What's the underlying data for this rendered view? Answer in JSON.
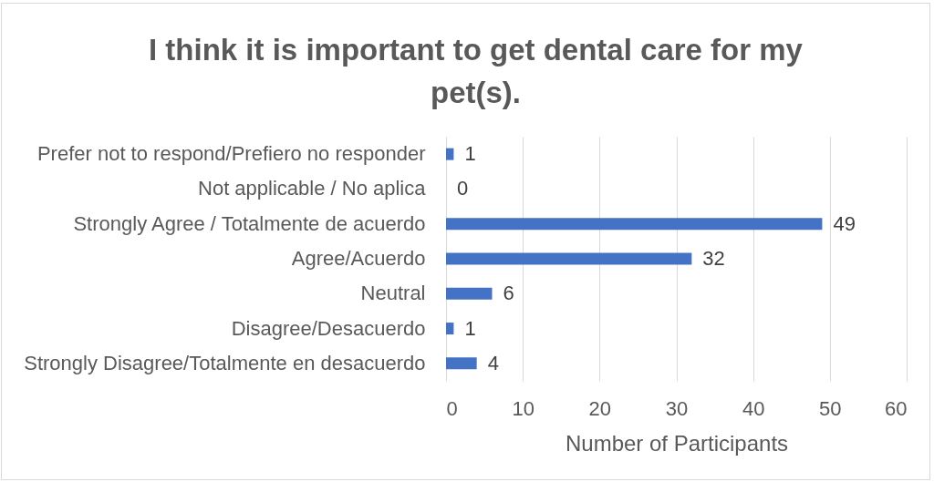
{
  "chart_data": {
    "type": "bar",
    "orientation": "horizontal",
    "title": "I think it is important to get dental care for my pet(s).",
    "xlabel": "Number of Participants",
    "categories": [
      "Prefer not to respond/Prefiero no responder",
      "Not applicable / No aplica",
      "Strongly Agree / Totalmente de acuerdo",
      "Agree/Acuerdo",
      "Neutral",
      "Disagree/Desacuerdo",
      "Strongly Disagree/Totalmente en desacuerdo"
    ],
    "values": [
      1,
      0,
      49,
      32,
      6,
      1,
      4
    ],
    "color": "#4472c4",
    "data_labels": true,
    "xlim": [
      0,
      60
    ],
    "xticks": [
      0,
      10,
      20,
      30,
      40,
      50,
      60
    ],
    "grid": "x"
  }
}
